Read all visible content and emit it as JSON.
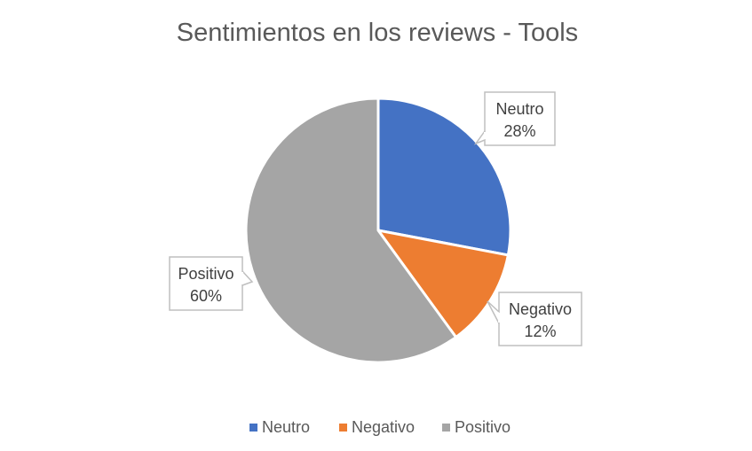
{
  "chart_data": {
    "type": "pie",
    "title": "Sentimientos en los reviews - Tools",
    "categories": [
      "Neutro",
      "Negativo",
      "Positivo"
    ],
    "values": [
      28,
      12,
      60
    ],
    "value_labels": [
      "28%",
      "12%",
      "60%"
    ],
    "colors": [
      "#4472C4",
      "#ED7D31",
      "#A5A5A5"
    ],
    "legend_position": "bottom"
  }
}
